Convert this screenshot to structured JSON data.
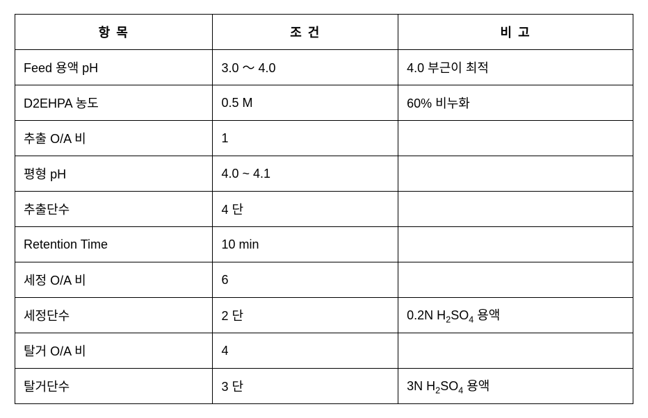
{
  "table": {
    "columns": [
      "항 목",
      "조 건",
      "비 고"
    ],
    "col_widths": [
      "32%",
      "30%",
      "38%"
    ],
    "border_color": "#000000",
    "background_color": "#ffffff",
    "text_color": "#000000",
    "font_size_pt": 14,
    "header_bold": true,
    "rows": [
      {
        "item": "Feed 용액 pH",
        "cond": "3.0 ～ 4.0",
        "note": "4.0 부근이 최적"
      },
      {
        "item": "D2EHPA 농도",
        "cond": "0.5   M",
        "note": "60% 비누화"
      },
      {
        "item": "추출 O/A 비",
        "cond": "1",
        "note": ""
      },
      {
        "item": "평형 pH",
        "cond": "4.0 ~ 4.1",
        "note": ""
      },
      {
        "item": "추출단수",
        "cond": "4 단",
        "note": ""
      },
      {
        "item": "Retention Time",
        "cond": "10 min",
        "note": ""
      },
      {
        "item": "세정 O/A 비",
        "cond": "6",
        "note": ""
      },
      {
        "item": "세정단수",
        "cond": "2 단",
        "note": "0.2N H₂SO₄ 용액"
      },
      {
        "item": "탈거 O/A 비",
        "cond": "4",
        "note": ""
      },
      {
        "item": "탈거단수",
        "cond": "3 단",
        "note": "3N H₂SO₄ 용액"
      }
    ]
  }
}
